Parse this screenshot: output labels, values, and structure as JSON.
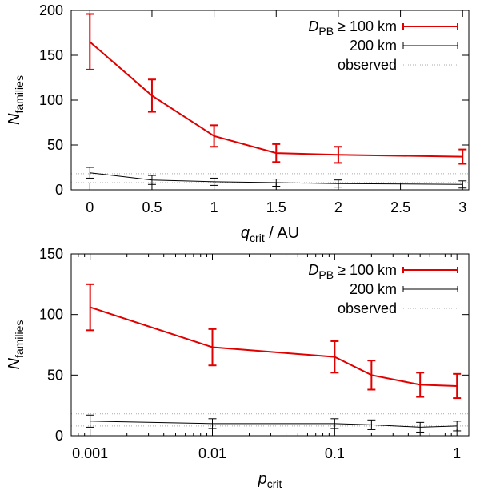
{
  "chart_data": [
    {
      "type": "line",
      "xscale": "linear",
      "xlim": [
        -0.15,
        3.05
      ],
      "ylim": [
        0,
        200
      ],
      "xticks": [
        0,
        0.5,
        1,
        1.5,
        2,
        2.5,
        3
      ],
      "xtick_labels": [
        "0",
        "0.5",
        "1",
        "1.5",
        "2",
        "2.5",
        "3"
      ],
      "yticks": [
        0,
        50,
        100,
        150,
        200
      ],
      "ytick_labels": [
        "0",
        "50",
        "100",
        "150",
        "200"
      ],
      "xlabel": {
        "var": "q",
        "sub": "crit",
        "suffix": " / AU"
      },
      "ylabel": {
        "var": "N",
        "sub": "families"
      },
      "observed_band": [
        8,
        18
      ],
      "legend": {
        "position": "top-right",
        "entries": [
          {
            "prefix": "D",
            "sub": "PB",
            "text": " ≥ 100 km",
            "color": "#e00000"
          },
          {
            "text": "200 km",
            "color": "#000000"
          },
          {
            "text": "observed",
            "color": "#aaaaaa"
          }
        ]
      },
      "series": [
        {
          "name": "D_PB ≥ 100 km",
          "color": "#e00000",
          "x": [
            0,
            0.5,
            1,
            1.5,
            2,
            3
          ],
          "y": [
            165,
            105,
            60,
            41,
            39,
            37
          ],
          "err": [
            31,
            18,
            12,
            10,
            9,
            8
          ]
        },
        {
          "name": "200 km",
          "color": "#000000",
          "x": [
            0,
            0.5,
            1,
            1.5,
            2,
            3
          ],
          "y": [
            19,
            11,
            9,
            8,
            7,
            6
          ],
          "err": [
            6,
            5,
            4,
            4,
            4,
            4
          ]
        }
      ]
    },
    {
      "type": "line",
      "xscale": "log",
      "xlim": [
        0.0007,
        1.25
      ],
      "ylim": [
        0,
        150
      ],
      "xticks": [
        0.001,
        0.01,
        0.1,
        1
      ],
      "xtick_labels": [
        "0.001",
        "0.01",
        "0.1",
        "1"
      ],
      "yticks": [
        0,
        50,
        100,
        150
      ],
      "ytick_labels": [
        "0",
        "50",
        "100",
        "150"
      ],
      "xlabel": {
        "var": "p",
        "sub": "crit",
        "suffix": ""
      },
      "ylabel": {
        "var": "N",
        "sub": "families"
      },
      "observed_band": [
        8,
        18
      ],
      "legend": {
        "position": "top-right",
        "entries": [
          {
            "prefix": "D",
            "sub": "PB",
            "text": " ≥ 100 km",
            "color": "#e00000"
          },
          {
            "text": "200 km",
            "color": "#000000"
          },
          {
            "text": "observed",
            "color": "#aaaaaa"
          }
        ]
      },
      "series": [
        {
          "name": "D_PB ≥ 100 km",
          "color": "#e00000",
          "x": [
            0.001,
            0.01,
            0.1,
            0.2,
            0.5,
            1
          ],
          "y": [
            106,
            73,
            65,
            50,
            42,
            41
          ],
          "err": [
            19,
            15,
            13,
            12,
            10,
            10
          ]
        },
        {
          "name": "200 km",
          "color": "#000000",
          "x": [
            0.001,
            0.01,
            0.1,
            0.2,
            0.5,
            1
          ],
          "y": [
            12,
            10,
            10,
            9,
            7,
            8
          ],
          "err": [
            5,
            4,
            4,
            4,
            4,
            4
          ]
        }
      ]
    }
  ]
}
